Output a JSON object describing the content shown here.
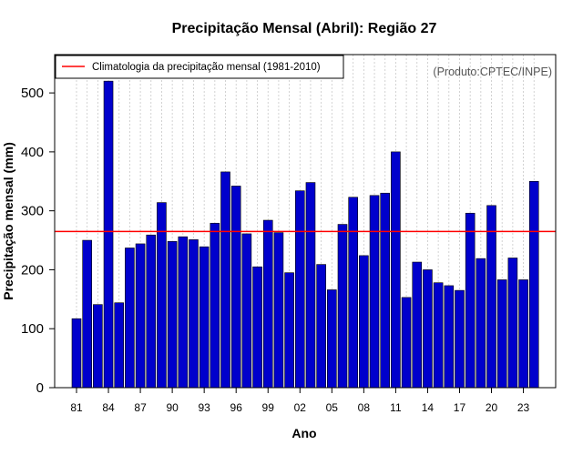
{
  "chart_data": {
    "type": "bar",
    "title": "Precipitação Mensal (Abril): Região 27",
    "xlabel": "Ano",
    "ylabel": "Precipitação mensal (mm)",
    "credit": "(Produto:CPTEC/INPE)",
    "legend": {
      "label": "Climatologia da precipitação mensal (1981-2010)",
      "position": "top-left"
    },
    "climatology": {
      "value": 265,
      "color": "#ff0000"
    },
    "bar_color": "#0000cc",
    "grid": true,
    "ylim": [
      0,
      565
    ],
    "yticks": [
      0,
      100,
      200,
      300,
      400,
      500
    ],
    "ytick_labels": [
      "0",
      "100",
      "200",
      "300",
      "400",
      "500"
    ],
    "categories": [
      "1981",
      "1982",
      "1983",
      "1984",
      "1985",
      "1986",
      "1987",
      "1988",
      "1989",
      "1990",
      "1991",
      "1992",
      "1993",
      "1994",
      "1995",
      "1996",
      "1997",
      "1998",
      "1999",
      "2000",
      "2001",
      "2002",
      "2003",
      "2004",
      "2005",
      "2006",
      "2007",
      "2008",
      "2009",
      "2010",
      "2011",
      "2012",
      "2013",
      "2014",
      "2015",
      "2016",
      "2017",
      "2018",
      "2019",
      "2020",
      "2021",
      "2022",
      "2023",
      "2024"
    ],
    "xtick_labels": [
      "81",
      "",
      "",
      "84",
      "",
      "",
      "87",
      "",
      "",
      "90",
      "",
      "",
      "93",
      "",
      "",
      "96",
      "",
      "",
      "99",
      "",
      "",
      "02",
      "",
      "",
      "05",
      "",
      "",
      "08",
      "",
      "",
      "11",
      "",
      "",
      "14",
      "",
      "",
      "17",
      "",
      "",
      "20",
      "",
      "",
      "23",
      ""
    ],
    "values": [
      117,
      250,
      141,
      520,
      144,
      237,
      244,
      259,
      314,
      248,
      256,
      251,
      239,
      279,
      366,
      342,
      261,
      205,
      284,
      263,
      195,
      334,
      348,
      209,
      166,
      277,
      323,
      224,
      326,
      330,
      400,
      153,
      213,
      200,
      178,
      173,
      165,
      296,
      219,
      309,
      183,
      220,
      183,
      350
    ]
  }
}
